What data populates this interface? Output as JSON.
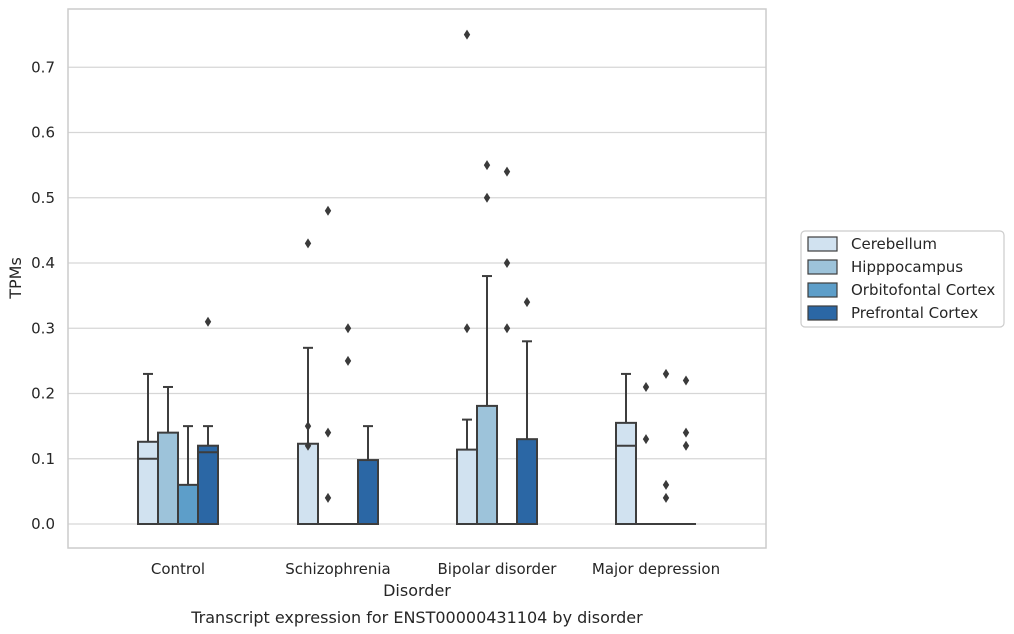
{
  "chart_data": {
    "type": "box",
    "xlabel": "Disorder",
    "ylabel": "TPMs",
    "caption": "Transcript expression for ENST00000431104 by disorder",
    "categories": [
      "Control",
      "Schizophrenia",
      "Bipolar disorder",
      "Major depression"
    ],
    "yticks": [
      "0.0",
      "0.1",
      "0.2",
      "0.3",
      "0.4",
      "0.5",
      "0.6",
      "0.7"
    ],
    "ylim": [
      -0.037,
      0.788
    ],
    "grid": true,
    "legend_position": "right",
    "series": [
      {
        "name": "Cerebellum",
        "color": "#d1e2f0",
        "boxes": [
          {
            "q1": 0.0,
            "median": 0.1,
            "q3": 0.126,
            "whisker_low": 0.0,
            "whisker_high": 0.23,
            "outliers": []
          },
          {
            "q1": 0.0,
            "median": 0.0,
            "q3": 0.123,
            "whisker_low": 0.0,
            "whisker_high": 0.27,
            "outliers": [
              0.43,
              0.15,
              0.12
            ]
          },
          {
            "q1": 0.0,
            "median": 0.0,
            "q3": 0.114,
            "whisker_low": 0.0,
            "whisker_high": 0.16,
            "outliers": [
              0.3,
              0.75
            ]
          },
          {
            "q1": 0.0,
            "median": 0.12,
            "q3": 0.155,
            "whisker_low": 0.0,
            "whisker_high": 0.23,
            "outliers": []
          }
        ]
      },
      {
        "name": "Hipppocampus",
        "color": "#9dc3da",
        "boxes": [
          {
            "q1": 0.0,
            "median": 0.0,
            "q3": 0.14,
            "whisker_low": 0.0,
            "whisker_high": 0.21,
            "outliers": []
          },
          {
            "q1": 0.0,
            "median": 0.0,
            "q3": 0.0,
            "whisker_low": 0.0,
            "whisker_high": 0.0,
            "outliers": [
              0.48,
              0.14,
              0.04
            ]
          },
          {
            "q1": 0.0,
            "median": 0.0,
            "q3": 0.181,
            "whisker_low": 0.0,
            "whisker_high": 0.38,
            "outliers": [
              0.55,
              0.5
            ]
          },
          {
            "q1": 0.0,
            "median": 0.0,
            "q3": 0.0,
            "whisker_low": 0.0,
            "whisker_high": 0.0,
            "outliers": [
              0.21,
              0.13
            ]
          }
        ]
      },
      {
        "name": "Orbitofontal Cortex",
        "color": "#5d9ec9",
        "boxes": [
          {
            "q1": 0.0,
            "median": 0.0,
            "q3": 0.06,
            "whisker_low": 0.0,
            "whisker_high": 0.15,
            "outliers": []
          },
          {
            "q1": 0.0,
            "median": 0.0,
            "q3": 0.0,
            "whisker_low": 0.0,
            "whisker_high": 0.0,
            "outliers": [
              0.3,
              0.25
            ]
          },
          {
            "q1": 0.0,
            "median": 0.0,
            "q3": 0.0,
            "whisker_low": 0.0,
            "whisker_high": 0.0,
            "outliers": [
              0.54,
              0.4,
              0.3
            ]
          },
          {
            "q1": 0.0,
            "median": 0.0,
            "q3": 0.0,
            "whisker_low": 0.0,
            "whisker_high": 0.0,
            "outliers": [
              0.23,
              0.06,
              0.04
            ]
          }
        ]
      },
      {
        "name": "Prefrontal Cortex",
        "color": "#2b67a5",
        "boxes": [
          {
            "q1": 0.0,
            "median": 0.11,
            "q3": 0.12,
            "whisker_low": 0.0,
            "whisker_high": 0.15,
            "outliers": [
              0.31
            ]
          },
          {
            "q1": 0.0,
            "median": 0.0,
            "q3": 0.098,
            "whisker_low": 0.0,
            "whisker_high": 0.15,
            "outliers": []
          },
          {
            "q1": 0.0,
            "median": 0.0,
            "q3": 0.13,
            "whisker_low": 0.0,
            "whisker_high": 0.28,
            "outliers": [
              0.34
            ]
          },
          {
            "q1": 0.0,
            "median": 0.0,
            "q3": 0.0,
            "whisker_low": 0.0,
            "whisker_high": 0.0,
            "outliers": [
              0.22,
              0.14,
              0.12
            ]
          }
        ]
      }
    ]
  }
}
